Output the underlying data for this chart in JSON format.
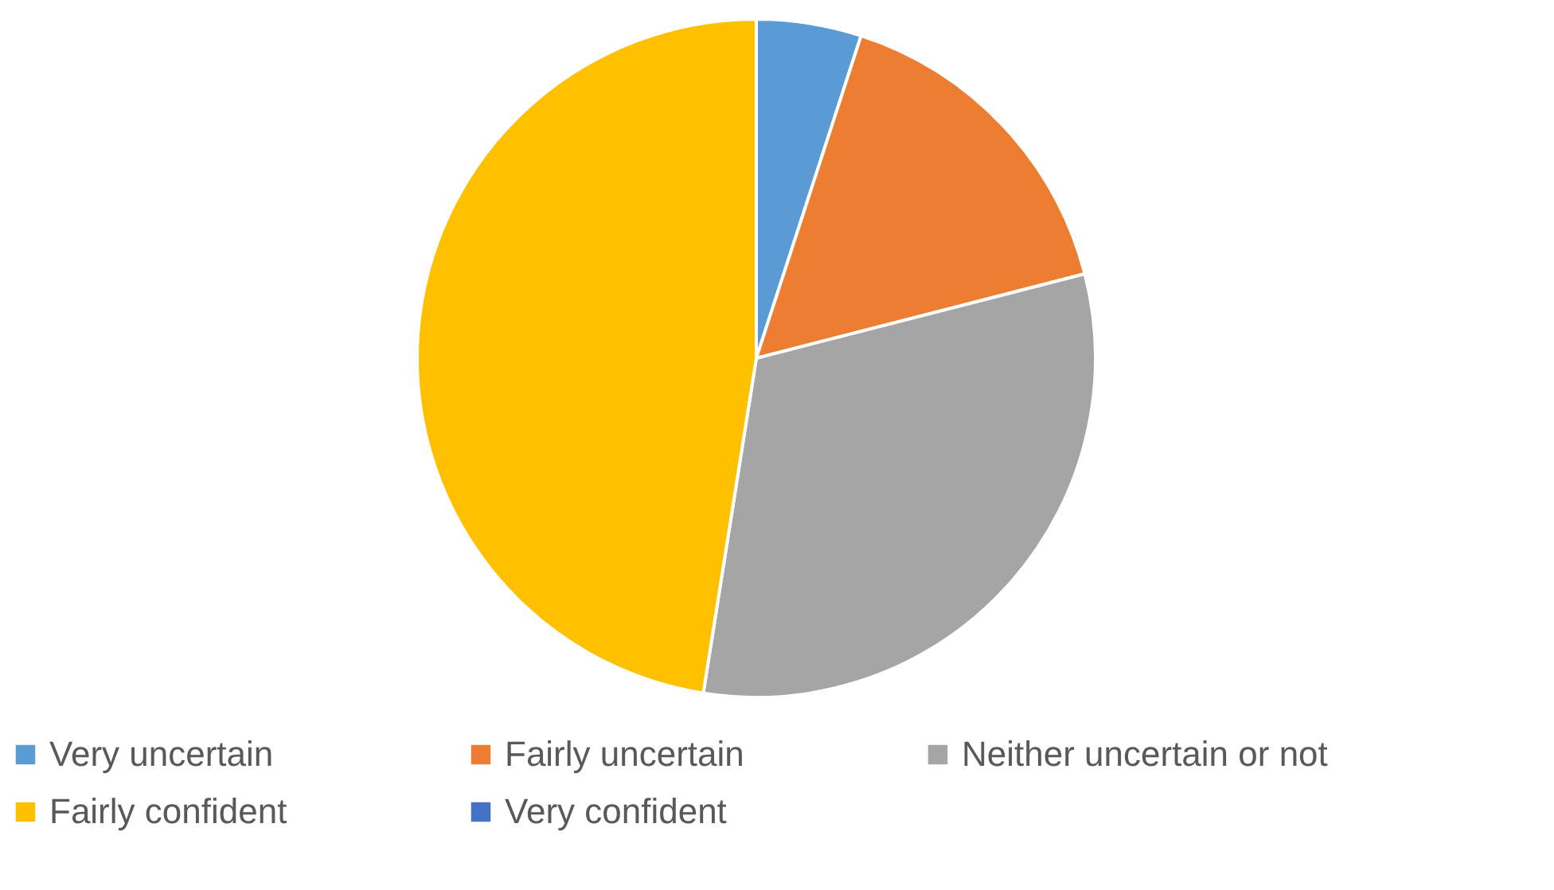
{
  "chart_data": {
    "type": "pie",
    "categories": [
      "Very uncertain",
      "Fairly uncertain",
      "Neither uncertain or not",
      "Fairly confident",
      "Very confident"
    ],
    "values": [
      5,
      16,
      31.5,
      47.5,
      0
    ],
    "colors": [
      "#5b9bd5",
      "#ed7d31",
      "#a5a5a5",
      "#ffc000",
      "#4472c4"
    ],
    "legend": "bottom"
  }
}
